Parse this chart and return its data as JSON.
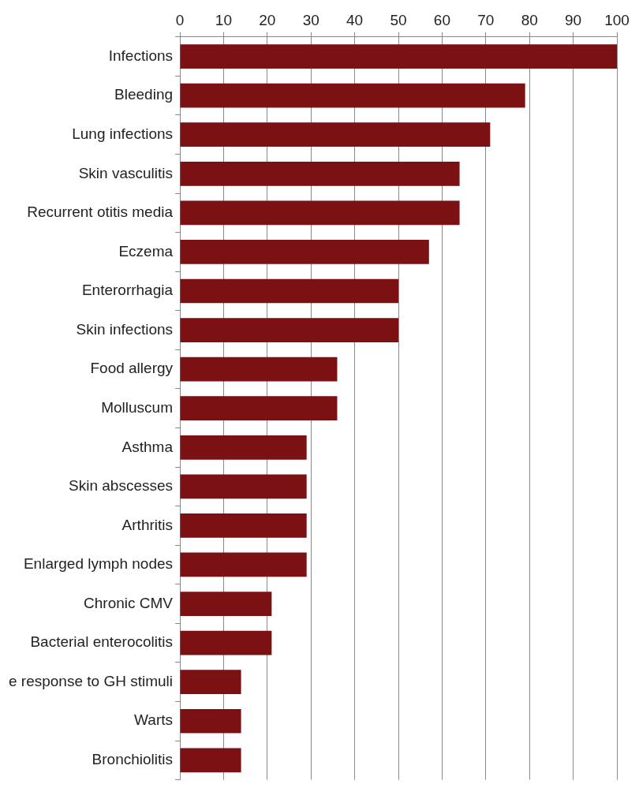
{
  "chart_data": {
    "type": "bar",
    "orientation": "horizontal",
    "categories": [
      "Infections",
      "Bleeding",
      "Lung infections",
      "Skin vasculitis",
      "Recurrent otitis media",
      "Eczema",
      "Enterorrhagia",
      "Skin infections",
      "Food allergy",
      "Molluscum",
      "Asthma",
      "Skin abscesses",
      "Arthritis",
      "Enlarged lymph nodes",
      "Chronic CMV",
      "Bacterial enterocolitis",
      "e response to GH stimuli",
      "Warts",
      "Bronchiolitis"
    ],
    "values": [
      100,
      79,
      71,
      64,
      64,
      57,
      50,
      50,
      36,
      36,
      29,
      29,
      29,
      29,
      21,
      21,
      14,
      14,
      14
    ],
    "color": "#7b1113",
    "xlim": [
      0,
      100
    ],
    "xticks": [
      0,
      10,
      20,
      30,
      40,
      50,
      60,
      70,
      80,
      90,
      100
    ],
    "grid": "x",
    "legend": false
  }
}
